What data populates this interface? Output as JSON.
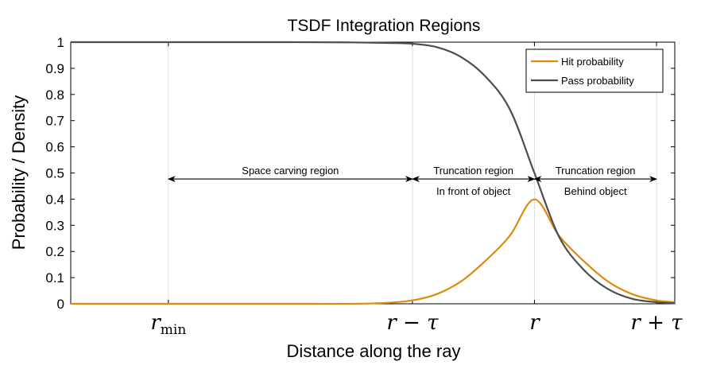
{
  "chart_data": {
    "type": "line",
    "title": "TSDF Integration Regions",
    "xlabel": "Distance along the ray",
    "ylabel": "Probability / Density",
    "xlim": [
      -3.8,
      1.15
    ],
    "ylim": [
      0,
      1
    ],
    "yticks": [
      0,
      0.1,
      0.2,
      0.3,
      0.4,
      0.5,
      0.6,
      0.7,
      0.8,
      0.9,
      1
    ],
    "ytick_labels": [
      "0",
      "0.1",
      "0.2",
      "0.3",
      "0.4",
      "0.5",
      "0.6",
      "0.7",
      "0.8",
      "0.9",
      "1"
    ],
    "xticks": [
      {
        "x": -3.0,
        "label": "r",
        "sub": "min"
      },
      {
        "x": -1.0,
        "label": "r − τ",
        "sub": ""
      },
      {
        "x": 0.0,
        "label": "r",
        "sub": ""
      },
      {
        "x": 1.0,
        "label": "r + τ",
        "sub": ""
      }
    ],
    "grid": "vertical",
    "legend_position": "top-right",
    "series": [
      {
        "name": "Hit probability",
        "color": "#e08a0c",
        "x": [
          -3.8,
          -3.0,
          -2.0,
          -1.5,
          -1.2,
          -1.0,
          -0.8,
          -0.6,
          -0.4,
          -0.2,
          0.0,
          0.2,
          0.4,
          0.6,
          0.8,
          1.0,
          1.15
        ],
        "y": [
          0,
          0,
          0,
          0,
          0.004,
          0.013,
          0.037,
          0.086,
          0.165,
          0.261,
          0.399,
          0.261,
          0.165,
          0.086,
          0.037,
          0.013,
          0.006
        ]
      },
      {
        "name": "Pass probability",
        "color": "#4d4d4f",
        "x": [
          -3.8,
          -3.0,
          -2.0,
          -1.5,
          -1.2,
          -1.0,
          -0.8,
          -0.6,
          -0.4,
          -0.2,
          0.0,
          0.2,
          0.4,
          0.6,
          0.8,
          1.0,
          1.15
        ],
        "y": [
          1,
          1,
          1,
          0.999,
          0.997,
          0.994,
          0.981,
          0.943,
          0.868,
          0.742,
          0.5,
          0.258,
          0.132,
          0.057,
          0.019,
          0.006,
          0.002
        ]
      }
    ],
    "annotations": [
      {
        "x1": -3.0,
        "x2": -1.0,
        "y": 0.48,
        "lines": [
          "Space carving region"
        ]
      },
      {
        "x1": -1.0,
        "x2": 0.0,
        "y": 0.48,
        "lines": [
          "Truncation region",
          "In front of object"
        ]
      },
      {
        "x1": 0.0,
        "x2": 1.0,
        "y": 0.48,
        "lines": [
          "Truncation region",
          "Behind object"
        ]
      }
    ]
  }
}
